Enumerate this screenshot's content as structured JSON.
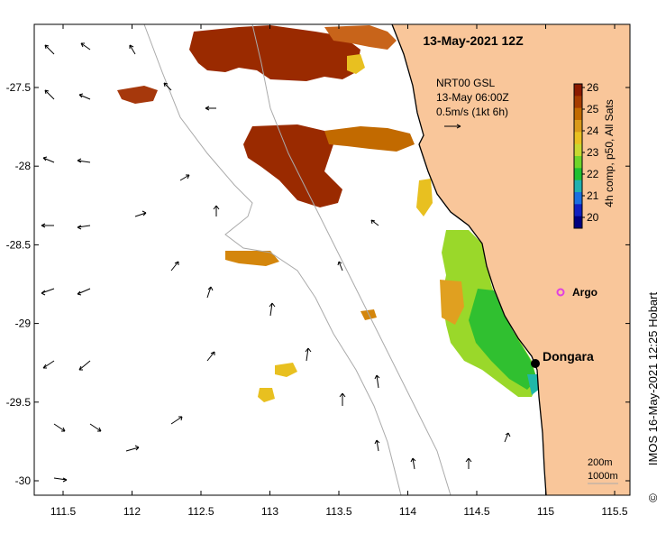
{
  "title": "13-May-2021 12Z",
  "current_legend": {
    "line1": "NRT00 GSL",
    "line2": "13-May 06:00Z",
    "line3": "0.5m/s (1kt 6h)"
  },
  "colorbar": {
    "label": "4h comp, p50, All Sats",
    "ticks": [
      "26",
      "25",
      "24",
      "23",
      "22",
      "21",
      "20"
    ],
    "colors": [
      "#8b1a00",
      "#a63c00",
      "#c26a00",
      "#d99a1a",
      "#e8c020",
      "#c8d830",
      "#6fd42a",
      "#1fc030",
      "#20b0b0",
      "#1a6fe0",
      "#1020c0",
      "#000080"
    ]
  },
  "markers": {
    "argo_label": "Argo",
    "argo_color": "#e040e0",
    "dongara_label": "Dongara"
  },
  "contour_legend": {
    "line1": "200m",
    "line2": "1000m"
  },
  "credit": "IMOS 16-May-2021 12:25 Hobart",
  "copyright": "©",
  "x_ticks": [
    "111.5",
    "112",
    "112.5",
    "113",
    "113.5",
    "114",
    "114.5",
    "115",
    "115.5"
  ],
  "y_ticks": [
    "-27.5",
    "-28",
    "-28.5",
    "-29",
    "-29.5",
    "-30"
  ],
  "colors": {
    "land": "#f9c69a",
    "sst_warm": "#9a2a00",
    "sst_orange": "#d4860c",
    "sst_yellow": "#e8c020",
    "sst_green": "#30c830"
  }
}
